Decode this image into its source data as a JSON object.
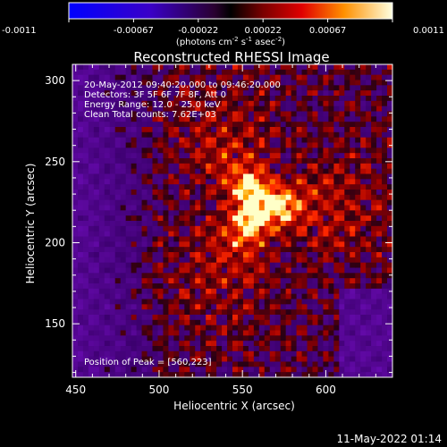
{
  "colorbar": {
    "ticks": [
      "-0.0011",
      "-0.00067",
      "-0.00022",
      "0.00022",
      "0.00067",
      "0.0011"
    ],
    "units_label": "(photons cm",
    "units_exp1": "-2",
    "units_mid": " s",
    "units_exp2": "-1",
    "units_end": " asec",
    "units_exp3": "-2",
    "units_close": ")"
  },
  "plot": {
    "title": "Reconstructed RHESSI Image",
    "xlabel": "Heliocentric X (arcsec)",
    "ylabel": "Heliocentric Y (arcsec)",
    "x_ticks": [
      "450",
      "500",
      "550",
      "600"
    ],
    "y_ticks": [
      "150",
      "200",
      "250",
      "300"
    ],
    "xlim": [
      448,
      640
    ],
    "ylim": [
      117,
      310
    ],
    "annotations": {
      "time_range": "20-May-2012 09:40:20.000 to 09:46:20.000",
      "detectors": "Detectors: 3F 5F 6F 7F 8F, Att 0",
      "energy": "Energy Range: 12.0 - 25.0 keV",
      "clean": "Clean     Total counts: 7.62E+03",
      "peak": "Position of Peak = [560,223]"
    },
    "peak_position": [
      560,
      223
    ]
  },
  "footer": {
    "timestamp": "11-May-2022 01:14"
  },
  "colors": {
    "background": "#000000",
    "foreground": "#ffffff"
  }
}
